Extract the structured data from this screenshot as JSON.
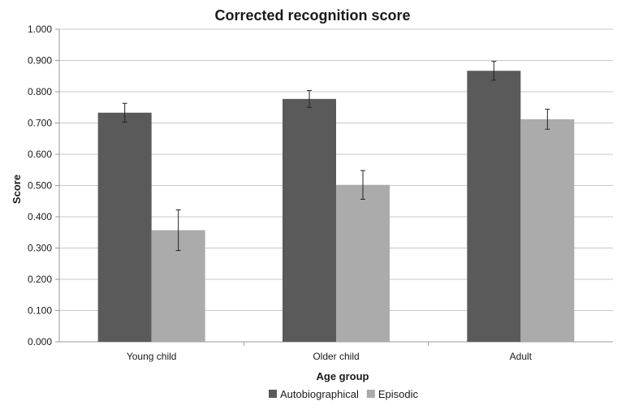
{
  "chart_data": {
    "type": "bar",
    "title": "Corrected recognition score",
    "xlabel": "Age group",
    "ylabel": "Score",
    "ylim": [
      0,
      1
    ],
    "ytick_step": 0.1,
    "ytick_labels": [
      "0.000",
      "0.100",
      "0.200",
      "0.300",
      "0.400",
      "0.500",
      "0.600",
      "0.700",
      "0.800",
      "0.900",
      "1.000"
    ],
    "grid": true,
    "legend_position": "bottom",
    "categories": [
      "Young child",
      "Older child",
      "Adult"
    ],
    "series": [
      {
        "name": "Autobiographical",
        "color": "#5a5a5a",
        "values": [
          0.733,
          0.777,
          0.867
        ],
        "error": [
          0.03,
          0.027,
          0.03
        ]
      },
      {
        "name": "Episodic",
        "color": "#ababab",
        "values": [
          0.357,
          0.502,
          0.712
        ],
        "error": [
          0.065,
          0.046,
          0.032
        ]
      }
    ]
  }
}
